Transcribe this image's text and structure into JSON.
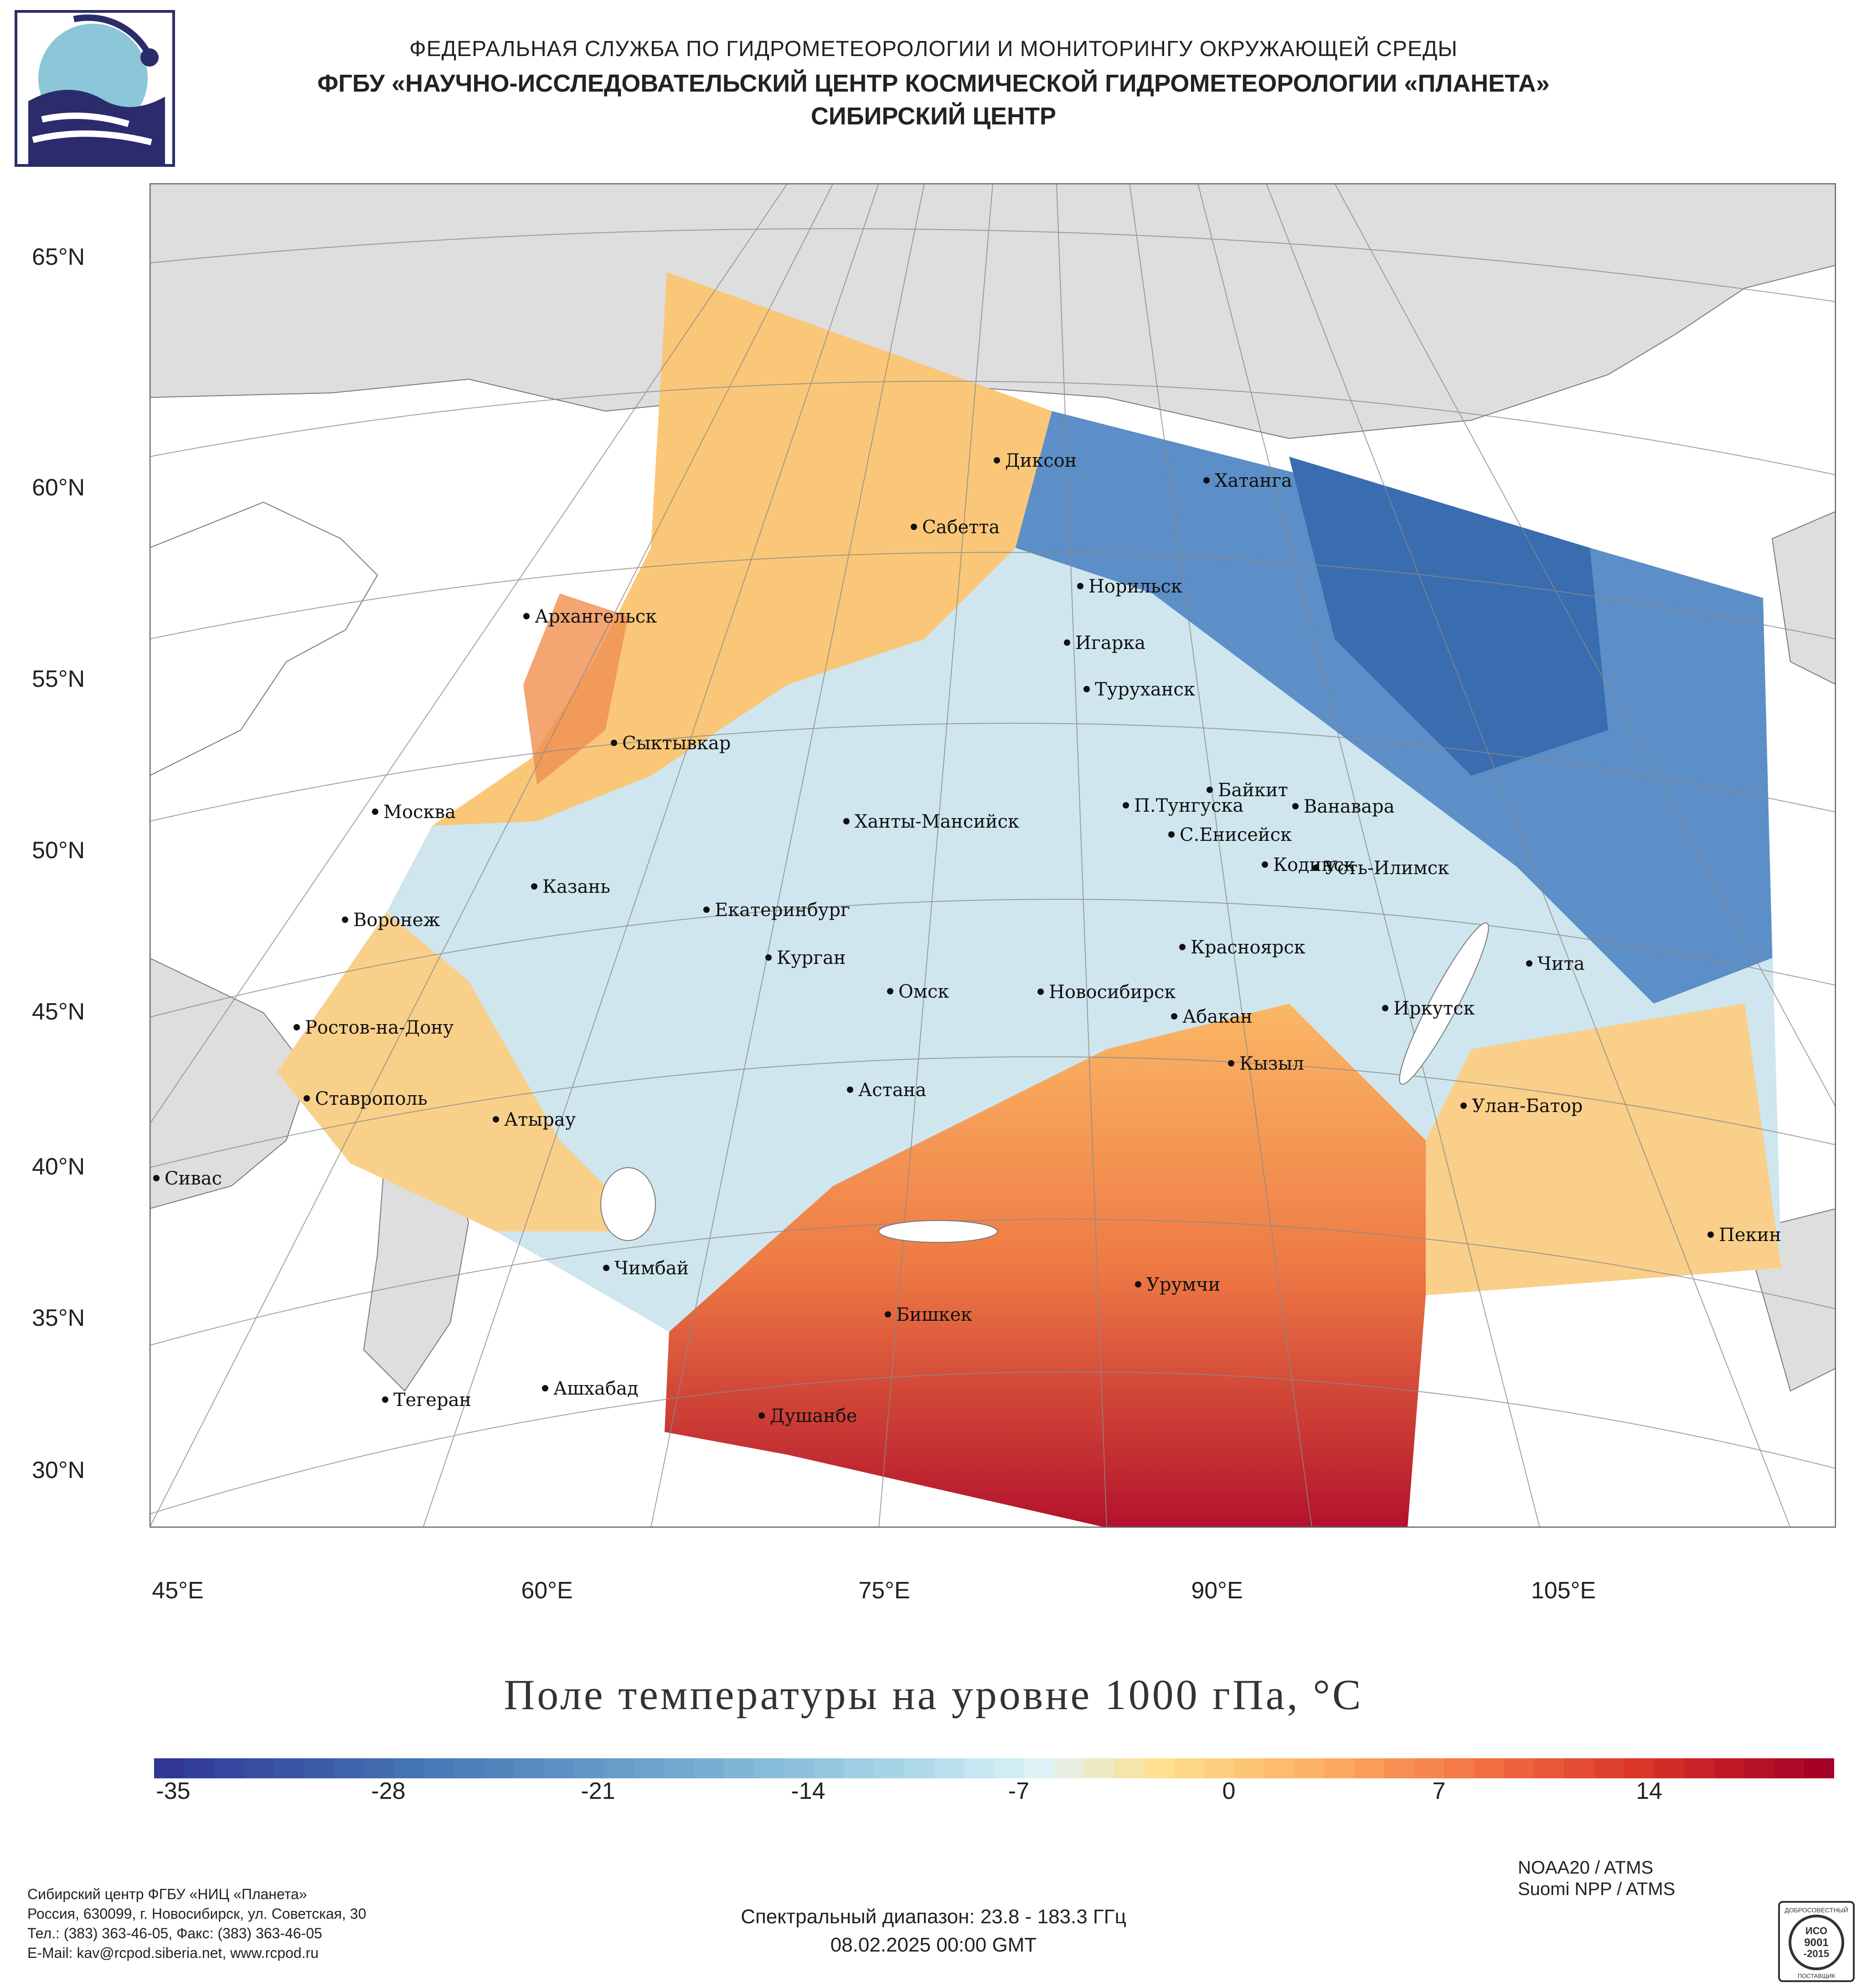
{
  "header": {
    "line1": "ФЕДЕРАЛЬНАЯ СЛУЖБА ПО ГИДРОМЕТЕОРОЛОГИИ И МОНИТОРИНГУ ОКРУЖАЮЩЕЙ СРЕДЫ",
    "line2": "ФГБУ «НАУЧНО-ИССЛЕДОВАТЕЛЬСКИЙ ЦЕНТР КОСМИЧЕСКОЙ ГИДРОМЕТЕОРОЛОГИИ «ПЛАНЕТА»",
    "line3": "СИБИРСКИЙ ЦЕНТР"
  },
  "map": {
    "lat_labels": [
      "65°N",
      "60°N",
      "55°N",
      "50°N",
      "45°N",
      "40°N",
      "35°N",
      "30°N"
    ],
    "lon_labels": [
      "45°E",
      "60°E",
      "75°E",
      "90°E",
      "105°E"
    ],
    "cities": [
      "Диксон",
      "Хатанга",
      "Сабетта",
      "Норильск",
      "Архангельск",
      "Игарка",
      "Туруханск",
      "Сыктывкар",
      "Байкит",
      "Москва",
      "П.Тунгуска",
      "Ванавара",
      "Ханты-Мансийск",
      "С.Енисейск",
      "Кодинск",
      "Усть-Илимск",
      "Казань",
      "Екатеринбург",
      "Воронеж",
      "Красноярск",
      "Курган",
      "Чита",
      "Омск",
      "Новосибирск",
      "Ростов-на-Дону",
      "Иркутск",
      "Абакан",
      "Кызыл",
      "Астана",
      "Ставрополь",
      "Улан-Батор",
      "Атырау",
      "Сивас",
      "Пекин",
      "Чимбай",
      "Урумчи",
      "Бишкек",
      "Ашхабад",
      "Тегеран",
      "Душанбе"
    ]
  },
  "title": "Поле температуры на уровне 1000 гПа, °C",
  "colorbar": {
    "ticks": [
      "-35",
      "-28",
      "-21",
      "-14",
      "-7",
      "0",
      "7",
      "14"
    ],
    "min": -35,
    "max": 21
  },
  "footer": {
    "org": "Сибирский центр ФГБУ «НИЦ «Планета»",
    "address": "Россия, 630099, г. Новосибирск, ул. Советская, 30",
    "phone": "Тел.: (383) 363-46-05, Факс: (383) 363-46-05",
    "email": "E-Mail: kav@rcpod.siberia.net, www.rcpod.ru",
    "spectral": "Спектральный диапазон: 23.8 - 183.3 ГГц",
    "datetime": "08.02.2025 00:00 GMT",
    "sat1": "NOAA20 / ATMS",
    "sat2": "Suomi NPP / ATMS",
    "cert_top": "ДОБРОСОВЕСТНЫЙ",
    "cert_iso": "ИСО",
    "cert_num": "9001",
    "cert_year": "-2015",
    "cert_bottom": "ПОСТАВЩИК"
  },
  "colors": {
    "land": "#dedede",
    "sea": "#ffffff",
    "cold": "#2a5ea8",
    "neutral": "#ddeef3",
    "warm": "#f9b35f",
    "hot": "#b0152a",
    "logo": "#2b2c6b"
  }
}
